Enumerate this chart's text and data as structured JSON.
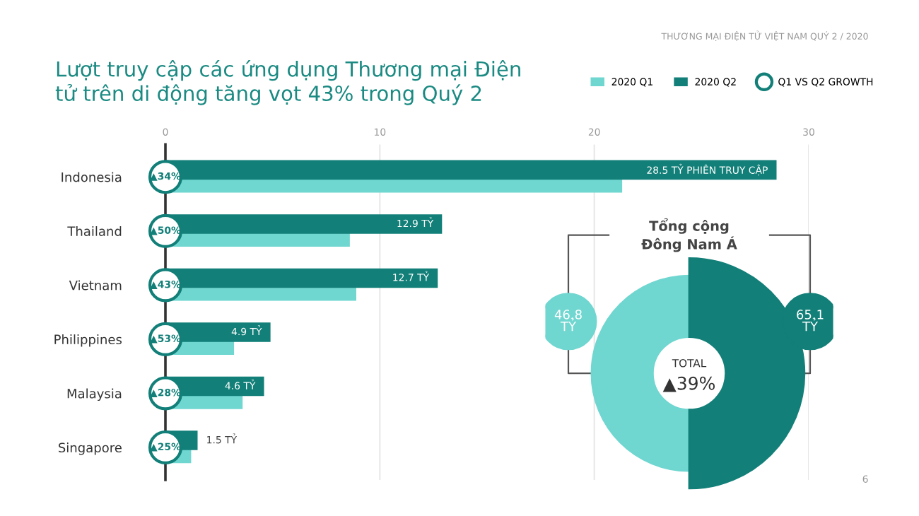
{
  "chart_data": [
    {
      "type": "bar",
      "orientation": "horizontal",
      "title": "Lượt truy cập các ứng dụng Thương mại Điện\ntử trên di động tăng vọt 43% trong Quý 2",
      "categories": [
        "Indonesia",
        "Thailand",
        "Vietnam",
        "Philippines",
        "Malaysia",
        "Singapore"
      ],
      "series": [
        {
          "name": "2020 Q1",
          "color": "#6fd6d0",
          "values": [
            21.3,
            8.6,
            8.9,
            3.2,
            3.6,
            1.2
          ]
        },
        {
          "name": "2020 Q2",
          "color": "#127f78",
          "values": [
            28.5,
            12.9,
            12.7,
            4.9,
            4.6,
            1.5
          ],
          "value_labels": [
            "28.5 TỶ PHIÊN TRUY CẬP",
            "12.9 TỶ",
            "12.7 TỶ",
            "4.9 TỶ",
            "4.6 TỶ",
            "1.5 TỶ"
          ]
        }
      ],
      "xlim": [
        0,
        30
      ],
      "xticks": [
        0,
        10,
        20,
        30
      ],
      "grid": "x",
      "legend": "top right",
      "tick_labels": "x",
      "annotations": [
        "THƯƠNG MẠI ĐIỆN TỬ VIỆT NAM QUÝ 2 / 2020",
        "6",
        "Q1 VS Q2 GROWTH",
        {
          "text": "▲34%",
          "y": "Indonesia"
        },
        {
          "text": "▲50%",
          "y": "Thailand"
        },
        {
          "text": "▲43%",
          "y": "Vietnam"
        },
        {
          "text": "▲53%",
          "y": "Philippines"
        },
        {
          "text": "▲28%",
          "y": "Malaysia"
        },
        {
          "text": "▲25%",
          "y": "Singapore"
        }
      ]
    },
    {
      "type": "other",
      "title": "Tổng cộng\nĐông Nam Á",
      "values": [
        46.8,
        65.1
      ],
      "value_labels": [
        "46.8\nTỶ",
        "65.1\nTỶ"
      ],
      "colors": [
        "#6fd6d0",
        "#127f78"
      ],
      "annotations": [
        "TOTAL",
        "▲39%"
      ]
    }
  ]
}
